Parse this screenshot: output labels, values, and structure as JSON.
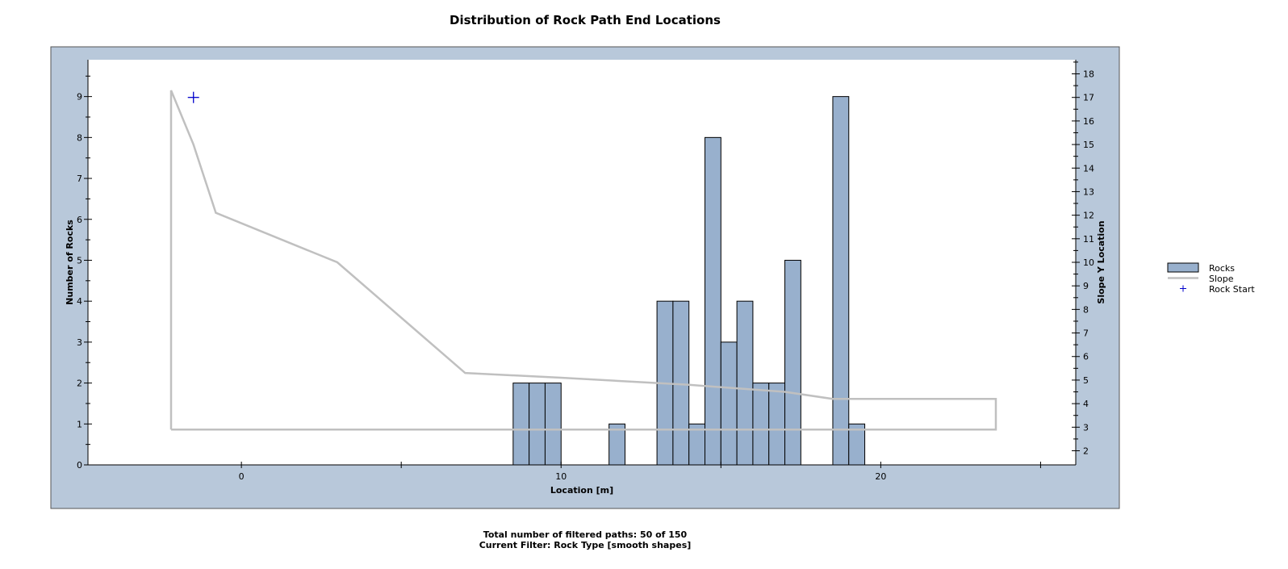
{
  "chart_data": {
    "type": "bar",
    "title": "Distribution of Rock Path End Locations",
    "xlabel": "Location [m]",
    "ylabel": "Number of Rocks",
    "y2label": "Slope Y Location",
    "xlim": [
      -4.8,
      26.1
    ],
    "ylim": [
      0,
      9.9
    ],
    "y2lim": [
      1.4,
      18.6
    ],
    "x_ticks": [
      0,
      10,
      20
    ],
    "y_ticks": [
      0,
      1,
      2,
      3,
      4,
      5,
      6,
      7,
      8,
      9
    ],
    "y2_ticks": [
      2,
      3,
      4,
      5,
      6,
      7,
      8,
      9,
      10,
      11,
      12,
      13,
      14,
      15,
      16,
      17,
      18
    ],
    "bin_width": 0.5,
    "series": [
      {
        "name": "Rocks",
        "bin_starts": [
          8.5,
          9.0,
          9.5,
          11.5,
          13.0,
          13.5,
          14.0,
          14.5,
          15.0,
          15.5,
          16.0,
          16.5,
          17.0,
          18.5,
          19.0
        ],
        "values": [
          2,
          2,
          2,
          1,
          4,
          4,
          1,
          8,
          3,
          4,
          2,
          2,
          5,
          9,
          1
        ]
      },
      {
        "name": "Slope",
        "x": [
          -2.2,
          -2.2,
          -1.5,
          -0.8,
          3.0,
          7.0,
          10.0,
          14.0,
          17.0,
          18.5,
          23.6,
          23.6,
          -2.2
        ],
        "y": [
          2.9,
          17.3,
          15.0,
          12.1,
          10.0,
          5.3,
          5.1,
          4.8,
          4.5,
          4.2,
          4.2,
          2.9,
          2.9
        ]
      },
      {
        "name": "Rock Start",
        "x": [
          -1.5
        ],
        "y": [
          17.0
        ]
      }
    ],
    "legend": {
      "placement": "right",
      "entries": [
        "Rocks",
        "Slope",
        "Rock Start"
      ]
    },
    "grid": false,
    "colors": {
      "bar_fill": "#98b0cd",
      "bar_stroke": "#000000",
      "slope": "#c0c0c0",
      "rock_start": "#0000cc",
      "frame_bg": "#b8c8da"
    }
  },
  "footer": {
    "line1": "Total number of filtered paths:  50 of 150",
    "line2": "Current Filter:  Rock Type [smooth shapes]"
  }
}
